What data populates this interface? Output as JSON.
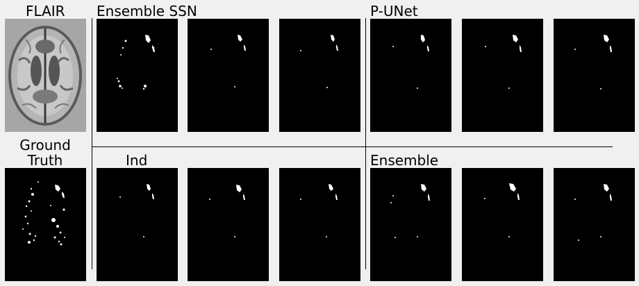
{
  "labels": {
    "flair": "FLAIR",
    "ground_truth": "Ground\nTruth",
    "ensemble_ssn": "Ensemble SSN",
    "p_unet": "P-UNet",
    "ind": "Ind",
    "ensemble": "Ensemble"
  },
  "colors": {
    "background": "#f0f0f0",
    "panel": "#000000",
    "lesion": "#ffffff",
    "mri_bg": "#a6a6a6"
  }
}
